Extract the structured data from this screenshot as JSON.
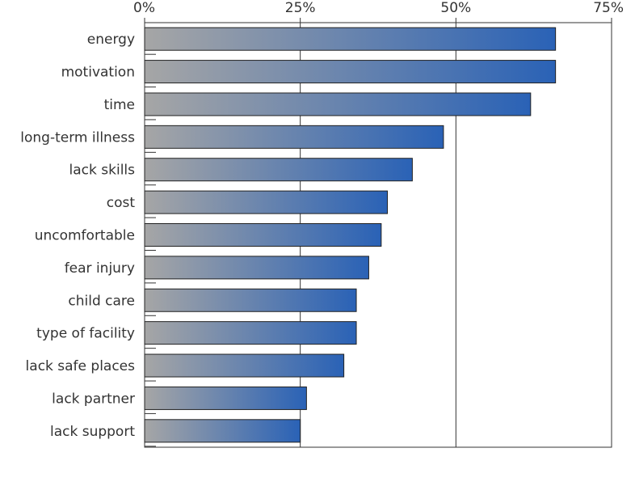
{
  "chart_data": {
    "type": "bar",
    "orientation": "horizontal",
    "categories": [
      "energy",
      "motivation",
      "time",
      "long-term illness",
      "lack skills",
      "cost",
      "uncomfortable",
      "fear injury",
      "child care",
      "type of facility",
      "lack safe places",
      "lack partner",
      "lack support"
    ],
    "values": [
      66,
      66,
      62,
      48,
      43,
      39,
      38,
      36,
      34,
      34,
      32,
      26,
      25
    ],
    "unit": "%",
    "xlim": [
      0,
      75
    ],
    "x_ticks": [
      "0%",
      "25%",
      "50%",
      "75%"
    ],
    "x_tick_values": [
      0,
      25,
      50,
      75
    ],
    "x_axis_position": "top",
    "grid": true,
    "bar_gradient": {
      "start": "#a6a6a6",
      "end": "#2a62b6"
    },
    "title": "",
    "xlabel": "",
    "ylabel": ""
  }
}
